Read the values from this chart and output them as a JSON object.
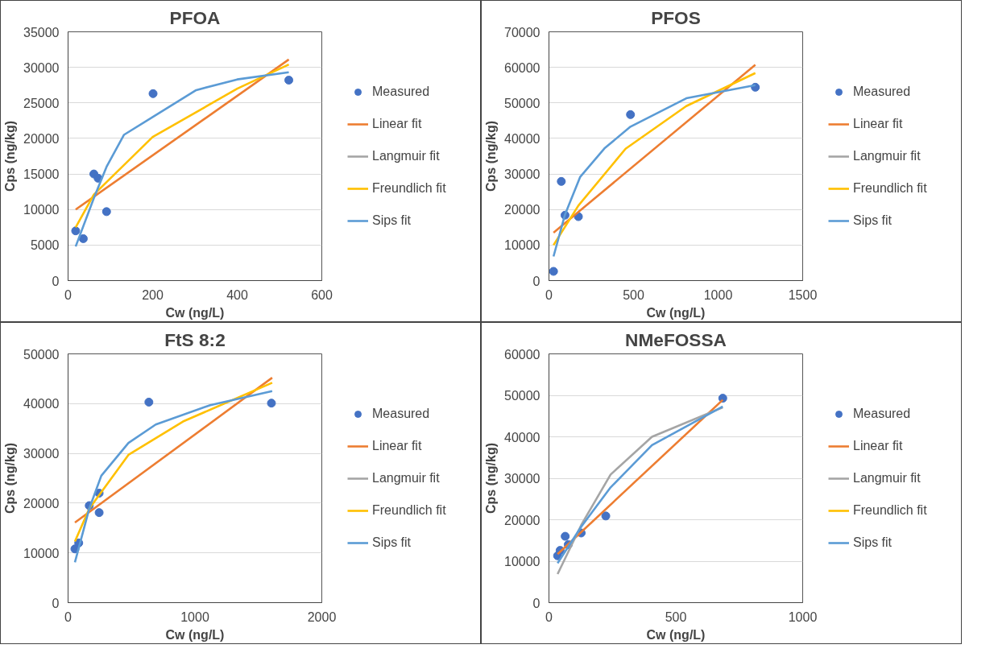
{
  "chart_data": [
    {
      "type": "scatter",
      "title": "PFOA",
      "xlabel": "Cw (ng/L)",
      "ylabel": "Cps (ng/kg)",
      "xlim": [
        0,
        600
      ],
      "xticks": [
        0,
        200,
        400,
        600
      ],
      "ylim": [
        0,
        35000
      ],
      "yticks": [
        0,
        5000,
        10000,
        15000,
        20000,
        25000,
        30000,
        35000
      ],
      "grid": "y",
      "legend": "right",
      "series": [
        {
          "name": "Measured",
          "marker": "circle",
          "color": "#4472c4",
          "x": [
            18,
            36,
            61,
            71,
            91,
            201,
            522
          ],
          "values": [
            7000,
            5900,
            15000,
            14400,
            9700,
            26300,
            28200
          ]
        },
        {
          "name": "Linear fit",
          "type": "line",
          "color": "#ed7d31",
          "x": [
            18,
            522
          ],
          "values": [
            10000,
            31100
          ]
        },
        {
          "name": "Langmuir fit",
          "type": "line",
          "color": "#a5a5a5"
        },
        {
          "name": "Freundlich fit",
          "type": "line",
          "color": "#ffc000",
          "x": [
            18,
            61,
            200,
            400,
            522
          ],
          "values": [
            7500,
            12100,
            20200,
            27000,
            30400
          ]
        },
        {
          "name": "Sips fit",
          "type": "line",
          "color": "#5b9bd5",
          "x": [
            18,
            61,
            91,
            132,
            200,
            303,
            400,
            522
          ],
          "values": [
            4800,
            11600,
            16000,
            20500,
            23000,
            26800,
            28300,
            29300
          ]
        }
      ]
    },
    {
      "type": "scatter",
      "title": "PFOS",
      "xlabel": "Cw (ng/L)",
      "ylabel": "Cps (ng/kg)",
      "xlim": [
        0,
        1500
      ],
      "xticks": [
        0,
        500,
        1000,
        1500
      ],
      "ylim": [
        0,
        70000
      ],
      "yticks": [
        0,
        10000,
        20000,
        30000,
        40000,
        50000,
        60000,
        70000
      ],
      "grid": "y",
      "legend": "right",
      "series": [
        {
          "name": "Measured",
          "marker": "circle",
          "color": "#4472c4",
          "x": [
            27,
            73,
            95,
            174,
            482,
            1220
          ],
          "values": [
            2600,
            27900,
            18400,
            18000,
            46700,
            54400
          ]
        },
        {
          "name": "Linear fit",
          "type": "line",
          "color": "#ed7d31",
          "x": [
            27,
            1220
          ],
          "values": [
            13500,
            60700
          ]
        },
        {
          "name": "Langmuir fit",
          "type": "line",
          "color": "#a5a5a5"
        },
        {
          "name": "Freundlich fit",
          "type": "line",
          "color": "#ffc000",
          "x": [
            27,
            174,
            453,
            812,
            1220
          ],
          "values": [
            10000,
            21100,
            37100,
            49100,
            58400
          ]
        },
        {
          "name": "Sips fit",
          "type": "line",
          "color": "#5b9bd5",
          "x": [
            27,
            95,
            185,
            328,
            482,
            812,
            1220
          ],
          "values": [
            6800,
            18600,
            29200,
            37200,
            43300,
            51300,
            55000
          ]
        }
      ]
    },
    {
      "type": "scatter",
      "title": "FtS 8:2",
      "xlabel": "Cw (ng/L)",
      "ylabel": "Cps (ng/kg)",
      "xlim": [
        0,
        2000
      ],
      "xticks": [
        0,
        1000,
        2000
      ],
      "ylim": [
        0,
        50000
      ],
      "yticks": [
        0,
        10000,
        20000,
        30000,
        40000,
        50000
      ],
      "grid": "y",
      "legend": "right",
      "series": [
        {
          "name": "Measured",
          "marker": "circle",
          "color": "#4472c4",
          "x": [
            54,
            84,
            167,
            245,
            245,
            637,
            1603
          ],
          "values": [
            10800,
            12000,
            19500,
            22000,
            18100,
            40300,
            40100
          ]
        },
        {
          "name": "Linear fit",
          "type": "line",
          "color": "#ed7d31",
          "x": [
            54,
            1609
          ],
          "values": [
            16100,
            45200
          ]
        },
        {
          "name": "Langmuir fit",
          "type": "line",
          "color": "#a5a5a5"
        },
        {
          "name": "Freundlich fit",
          "type": "line",
          "color": "#ffc000",
          "x": [
            54,
            167,
            476,
            906,
            1609
          ],
          "values": [
            12300,
            18900,
            29700,
            36400,
            44200
          ]
        },
        {
          "name": "Sips fit",
          "type": "line",
          "color": "#5b9bd5",
          "x": [
            54,
            167,
            262,
            476,
            691,
            1120,
            1609
          ],
          "values": [
            8100,
            18900,
            25500,
            32100,
            35800,
            39700,
            42500
          ]
        }
      ]
    },
    {
      "type": "scatter",
      "title": "NMeFOSSA",
      "xlabel": "Cw (ng/L)",
      "ylabel": "Cps (ng/kg)",
      "xlim": [
        0,
        1000
      ],
      "xticks": [
        0,
        500,
        1000
      ],
      "ylim": [
        0,
        60000
      ],
      "yticks": [
        0,
        10000,
        20000,
        30000,
        40000,
        50000,
        60000
      ],
      "grid": "y",
      "legend": "right",
      "series": [
        {
          "name": "Measured",
          "marker": "circle",
          "color": "#4472c4",
          "x": [
            34,
            44,
            64,
            76,
            127,
            224,
            685
          ],
          "values": [
            11300,
            12600,
            16000,
            14000,
            16800,
            20900,
            49300
          ]
        },
        {
          "name": "Linear fit",
          "type": "line",
          "color": "#ed7d31",
          "x": [
            34,
            685
          ],
          "values": [
            11700,
            48900
          ]
        },
        {
          "name": "Langmuir fit",
          "type": "line",
          "color": "#a5a5a5",
          "x": [
            34,
            127,
            243,
            406,
            685
          ],
          "values": [
            6900,
            18700,
            30900,
            40000,
            47100
          ]
        },
        {
          "name": "Freundlich fit",
          "type": "line",
          "color": "#ffc000"
        },
        {
          "name": "Sips fit",
          "type": "line",
          "color": "#5b9bd5",
          "x": [
            34,
            127,
            243,
            406,
            685
          ],
          "values": [
            9500,
            18300,
            27800,
            38000,
            47300
          ]
        }
      ]
    }
  ]
}
